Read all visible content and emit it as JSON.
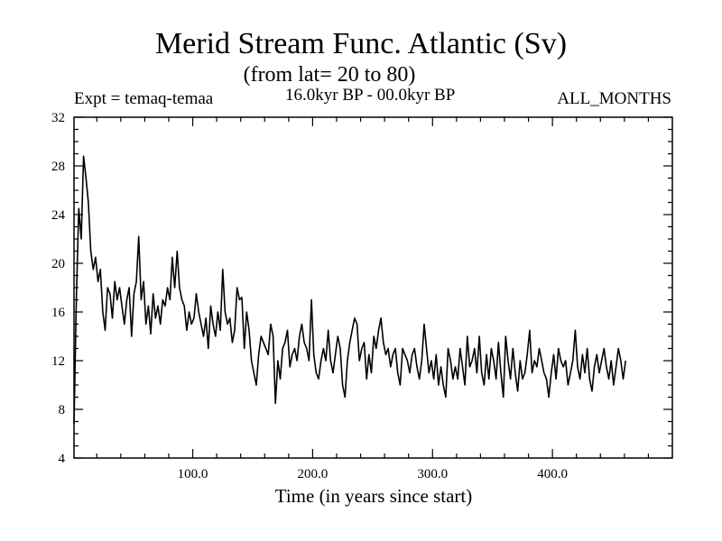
{
  "header": {
    "title": "Merid Stream Func. Atlantic (Sv)",
    "subtitle": "(from lat= 20 to 80)",
    "expt": "Expt = temaq-temaa",
    "period": "16.0kyr BP - 00.0kyr BP",
    "months": "ALL_MONTHS"
  },
  "chart_data": {
    "type": "line",
    "title": "Merid Stream Func. Atlantic (Sv)",
    "subtitle": "(from lat= 20 to 80)",
    "xlabel": "Time (in years since start)",
    "ylabel": "",
    "xlim": [
      1,
      500
    ],
    "ylim": [
      4,
      32
    ],
    "x_ticks": [
      100,
      200,
      300,
      400
    ],
    "x_tick_labels": [
      "100.0",
      "200.0",
      "300.0",
      "400.0"
    ],
    "y_ticks": [
      4,
      8,
      12,
      16,
      20,
      24,
      28,
      32
    ],
    "y_tick_labels": [
      "4",
      "8",
      "12",
      "16",
      "20",
      "24",
      "28",
      "32"
    ],
    "grid": false,
    "line_color": "#000000",
    "series": [
      {
        "x_start": 1,
        "x_step": 2,
        "values": [
          6.8,
          17.5,
          24.5,
          22.0,
          28.8,
          27.0,
          25.0,
          21.0,
          19.5,
          20.5,
          18.5,
          19.5,
          16.0,
          14.5,
          18.0,
          17.5,
          15.5,
          18.5,
          17.0,
          18.0,
          16.5,
          15.0,
          17.0,
          18.0,
          14.0,
          17.5,
          18.5,
          22.2,
          17.0,
          18.5,
          15.0,
          16.5,
          14.2,
          17.5,
          15.5,
          16.5,
          15.0,
          17.0,
          16.5,
          18.0,
          17.0,
          20.5,
          18.0,
          21.0,
          18.0,
          17.0,
          16.5,
          14.5,
          16.0,
          15.0,
          15.5,
          17.5,
          16.0,
          15.0,
          14.0,
          15.5,
          13.0,
          16.5,
          15.0,
          14.0,
          16.0,
          14.5,
          19.5,
          16.0,
          15.0,
          15.5,
          13.5,
          14.5,
          18.0,
          17.0,
          17.2,
          13.0,
          16.0,
          14.5,
          12.0,
          11.0,
          10.0,
          12.5,
          14.0,
          13.5,
          13.0,
          12.5,
          15.0,
          14.0,
          8.5,
          12.0,
          10.5,
          13.0,
          13.5,
          14.5,
          11.5,
          12.5,
          13.0,
          12.0,
          14.0,
          15.0,
          13.5,
          13.0,
          12.0,
          17.0,
          12.5,
          11.0,
          10.5,
          12.0,
          13.0,
          12.0,
          14.5,
          12.0,
          11.0,
          12.5,
          14.0,
          13.0,
          10.0,
          9.0,
          12.0,
          13.5,
          14.5,
          15.5,
          15.0,
          12.0,
          13.0,
          13.5,
          10.5,
          12.5,
          11.0,
          14.0,
          13.0,
          14.5,
          15.5,
          13.5,
          12.5,
          13.0,
          11.5,
          12.5,
          13.0,
          11.0,
          10.0,
          13.0,
          12.5,
          12.0,
          11.0,
          12.5,
          13.0,
          11.5,
          10.5,
          12.0,
          15.0,
          13.0,
          11.0,
          12.0,
          10.5,
          12.5,
          10.0,
          11.5,
          10.0,
          9.0,
          13.0,
          12.0,
          10.5,
          11.5,
          10.5,
          13.0,
          11.5,
          10.0,
          14.0,
          11.5,
          12.0,
          13.0,
          11.0,
          14.0,
          11.0,
          10.0,
          12.5,
          10.5,
          13.0,
          12.0,
          10.5,
          13.5,
          11.0,
          9.0,
          14.0,
          12.0,
          10.5,
          13.0,
          11.0,
          9.5,
          12.0,
          10.5,
          11.0,
          12.5,
          14.5,
          11.0,
          12.0,
          11.5,
          13.0,
          12.0,
          11.0,
          10.5,
          9.0,
          11.0,
          12.5,
          10.5,
          13.0,
          12.0,
          11.5,
          12.0,
          10.0,
          11.0,
          12.0,
          14.5,
          11.5,
          10.5,
          12.5,
          11.0,
          13.0,
          10.5,
          9.5,
          11.5,
          12.5,
          11.0,
          12.0,
          13.0,
          11.5,
          10.5,
          12.0,
          10.0,
          11.5,
          13.0,
          12.0,
          10.5,
          12.0
        ]
      }
    ]
  }
}
